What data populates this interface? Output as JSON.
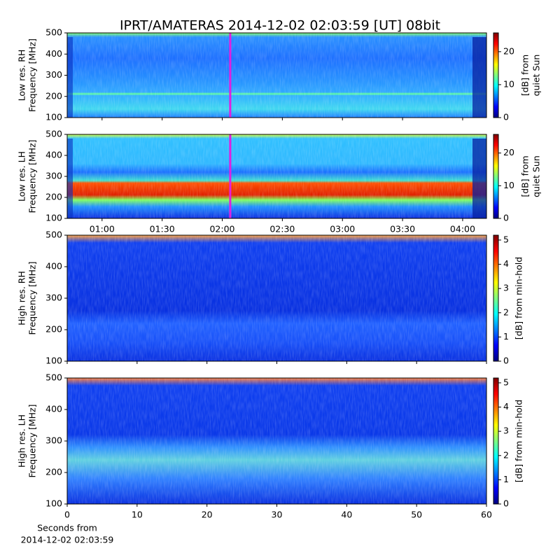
{
  "chart_data": [
    {
      "type": "spectrogram",
      "title": "IPRT/AMATERAS 2014-12-02 02:03:59 [UT]   08bit",
      "ylabel": [
        "Low res. RH",
        "Frequency [MHz]"
      ],
      "ylim": [
        100,
        500
      ],
      "yticks": [
        100,
        200,
        300,
        400,
        500
      ],
      "xlim": [
        42.6,
        251.9
      ],
      "xticks": [
        {
          "value": 60,
          "label": "01:00"
        },
        {
          "value": 90,
          "label": "01:30"
        },
        {
          "value": 120,
          "label": "02:00"
        },
        {
          "value": 150,
          "label": "02:30"
        },
        {
          "value": 180,
          "label": "03:00"
        },
        {
          "value": 210,
          "label": "03:30"
        },
        {
          "value": 240,
          "label": "04:00"
        }
      ],
      "show_xtick_labels": false,
      "cursor_x": 123.98,
      "cursor_color": "#e020e0",
      "clim": [
        0,
        25.7
      ],
      "cticks": [
        0,
        10,
        20
      ],
      "clabel": [
        "[dB] from",
        "quiet Sun"
      ]
    },
    {
      "type": "spectrogram",
      "ylabel": [
        "Low res. LH",
        "Frequency [MHz]"
      ],
      "ylim": [
        100,
        500
      ],
      "yticks": [
        100,
        200,
        300,
        400,
        500
      ],
      "xlim": [
        42.6,
        251.9
      ],
      "xticks": [
        {
          "value": 60,
          "label": "01:00"
        },
        {
          "value": 90,
          "label": "01:30"
        },
        {
          "value": 120,
          "label": "02:00"
        },
        {
          "value": 150,
          "label": "02:30"
        },
        {
          "value": 180,
          "label": "03:00"
        },
        {
          "value": 210,
          "label": "03:30"
        },
        {
          "value": 240,
          "label": "04:00"
        }
      ],
      "show_xtick_labels": true,
      "cursor_x": 123.98,
      "cursor_color": "#e020e0",
      "clim": [
        0,
        25.7
      ],
      "cticks": [
        0,
        10,
        20
      ],
      "clabel": [
        "[dB] from",
        "quiet Sun"
      ]
    },
    {
      "type": "spectrogram",
      "ylabel": [
        "High res. RH",
        "Frequency [MHz]"
      ],
      "ylim": [
        100,
        500
      ],
      "yticks": [
        100,
        200,
        300,
        400,
        500
      ],
      "xlim": [
        0,
        60
      ],
      "xticks": [
        0,
        10,
        20,
        30,
        40,
        50,
        60
      ],
      "show_xtick_labels": false,
      "clim": [
        0,
        5.2
      ],
      "cticks": [
        0,
        1,
        2,
        3,
        4,
        5
      ],
      "clabel": [
        "[dB] from min-hold"
      ]
    },
    {
      "type": "spectrogram",
      "ylabel": [
        "High res. LH",
        "Frequency [MHz]"
      ],
      "ylim": [
        100,
        500
      ],
      "yticks": [
        100,
        200,
        300,
        400,
        500
      ],
      "xlim": [
        0,
        60
      ],
      "xticks": [
        0,
        10,
        20,
        30,
        40,
        50,
        60
      ],
      "show_xtick_labels": true,
      "xlabel": [
        "Seconds from",
        "2014-12-02 02:03:59"
      ],
      "clim": [
        0,
        5.2
      ],
      "cticks": [
        0,
        1,
        2,
        3,
        4,
        5
      ],
      "clabel": [
        "[dB] from min-hold"
      ]
    }
  ]
}
